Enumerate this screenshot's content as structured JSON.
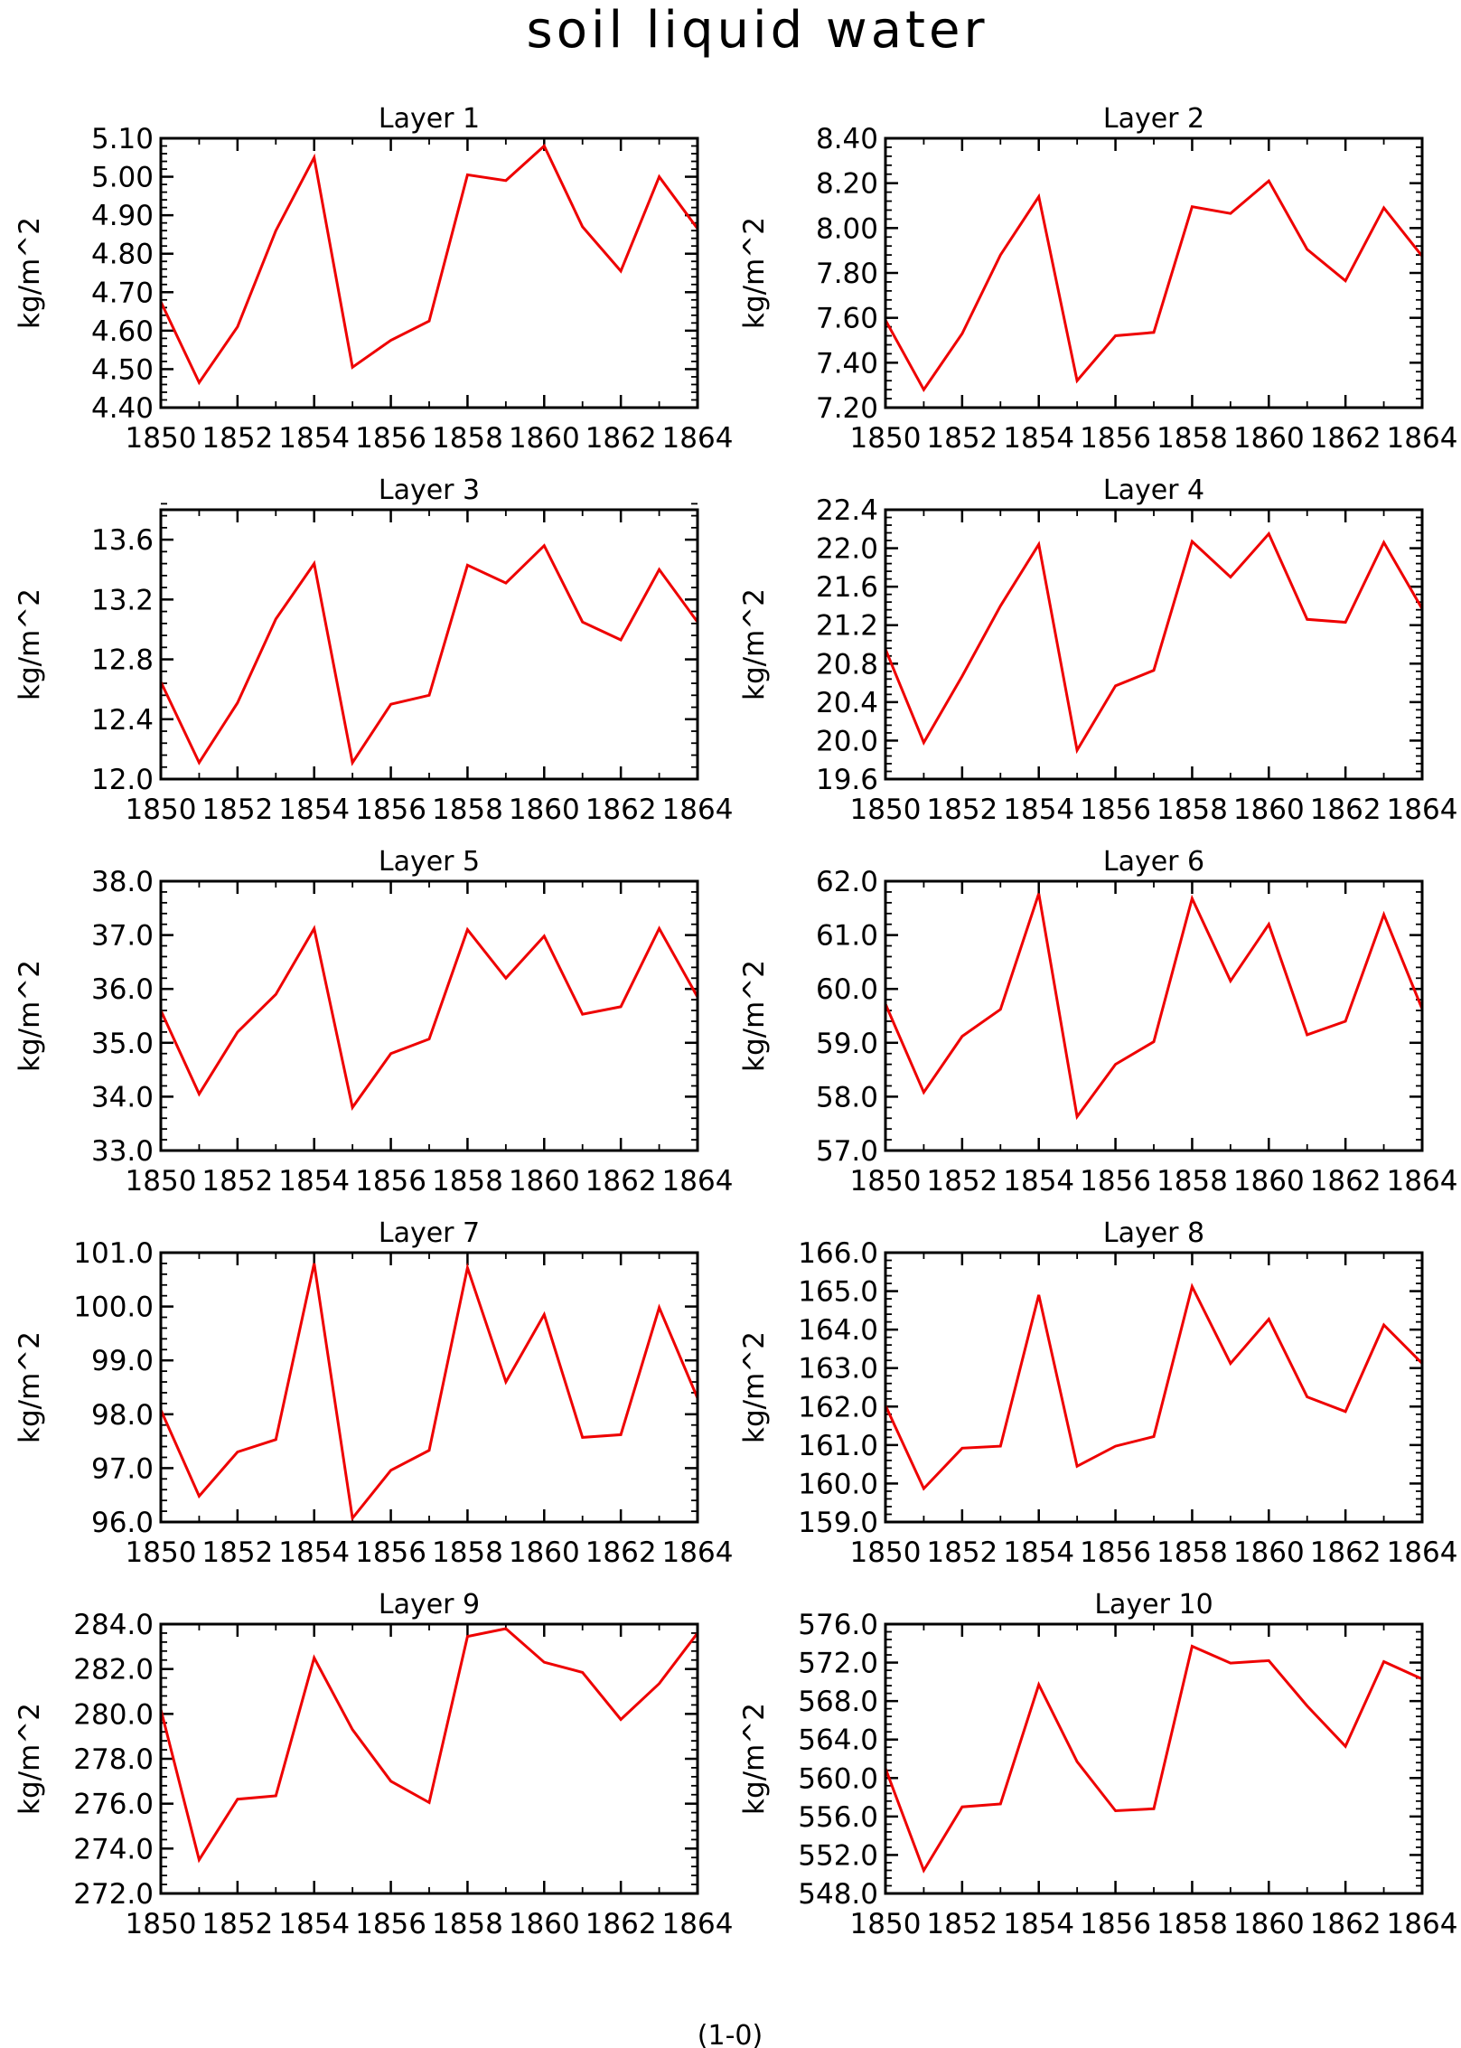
{
  "figure": {
    "title": "soil liquid water",
    "footer": "(1-0)",
    "line_color": "#ee0000"
  },
  "chart_data": [
    {
      "type": "line",
      "title": "Layer 1",
      "ylabel": "kg/m^2",
      "ylim": [
        4.4,
        5.1
      ],
      "yticks": [
        "4.40",
        "4.50",
        "4.60",
        "4.70",
        "4.80",
        "4.90",
        "5.00",
        "5.10"
      ],
      "yminor": 0.02,
      "x": [
        1850,
        1851,
        1852,
        1853,
        1854,
        1855,
        1856,
        1857,
        1858,
        1859,
        1860,
        1861,
        1862,
        1863,
        1864
      ],
      "xlim": [
        1850,
        1864
      ],
      "xticks": [
        "1850",
        "1852",
        "1854",
        "1856",
        "1858",
        "1860",
        "1862",
        "1864"
      ],
      "values": [
        4.675,
        4.465,
        4.61,
        4.86,
        5.05,
        4.505,
        4.575,
        4.625,
        5.005,
        4.99,
        5.08,
        4.87,
        4.755,
        5.0,
        4.865
      ]
    },
    {
      "type": "line",
      "title": "Layer 2",
      "ylabel": "kg/m^2",
      "ylim": [
        7.2,
        8.4
      ],
      "yticks": [
        "7.20",
        "7.40",
        "7.60",
        "7.80",
        "8.00",
        "8.20",
        "8.40"
      ],
      "yminor": 0.04,
      "x": [
        1850,
        1851,
        1852,
        1853,
        1854,
        1855,
        1856,
        1857,
        1858,
        1859,
        1860,
        1861,
        1862,
        1863,
        1864
      ],
      "xlim": [
        1850,
        1864
      ],
      "xticks": [
        "1850",
        "1852",
        "1854",
        "1856",
        "1858",
        "1860",
        "1862",
        "1864"
      ],
      "values": [
        7.59,
        7.28,
        7.53,
        7.88,
        8.14,
        7.32,
        7.52,
        7.535,
        8.095,
        8.065,
        8.21,
        7.905,
        7.765,
        8.09,
        7.875
      ]
    },
    {
      "type": "line",
      "title": "Layer 3",
      "ylabel": "kg/m^2",
      "ylim": [
        12.0,
        13.8
      ],
      "yticks": [
        "12.0",
        "12.4",
        "12.8",
        "13.2",
        "13.6"
      ],
      "yminor": 0.08,
      "x": [
        1850,
        1851,
        1852,
        1853,
        1854,
        1855,
        1856,
        1857,
        1858,
        1859,
        1860,
        1861,
        1862,
        1863,
        1864
      ],
      "xlim": [
        1850,
        1864
      ],
      "xticks": [
        "1850",
        "1852",
        "1854",
        "1856",
        "1858",
        "1860",
        "1862",
        "1864"
      ],
      "values": [
        12.65,
        12.11,
        12.51,
        13.07,
        13.44,
        12.11,
        12.5,
        12.56,
        13.43,
        13.31,
        13.56,
        13.05,
        12.93,
        13.4,
        13.05
      ]
    },
    {
      "type": "line",
      "title": "Layer 4",
      "ylabel": "kg/m^2",
      "ylim": [
        19.6,
        22.4
      ],
      "yticks": [
        "19.6",
        "20.0",
        "20.4",
        "20.8",
        "21.2",
        "21.6",
        "22.0",
        "22.4"
      ],
      "yminor": 0.08,
      "x": [
        1850,
        1851,
        1852,
        1853,
        1854,
        1855,
        1856,
        1857,
        1858,
        1859,
        1860,
        1861,
        1862,
        1863,
        1864
      ],
      "xlim": [
        1850,
        1864
      ],
      "xticks": [
        "1850",
        "1852",
        "1854",
        "1856",
        "1858",
        "1860",
        "1862",
        "1864"
      ],
      "values": [
        20.95,
        19.98,
        20.67,
        21.4,
        22.04,
        19.9,
        20.57,
        20.73,
        22.07,
        21.7,
        22.15,
        21.26,
        21.23,
        22.06,
        21.37
      ]
    },
    {
      "type": "line",
      "title": "Layer 5",
      "ylabel": "kg/m^2",
      "ylim": [
        33.0,
        38.0
      ],
      "yticks": [
        "33.0",
        "34.0",
        "35.0",
        "36.0",
        "37.0",
        "38.0"
      ],
      "yminor": 0.2,
      "x": [
        1850,
        1851,
        1852,
        1853,
        1854,
        1855,
        1856,
        1857,
        1858,
        1859,
        1860,
        1861,
        1862,
        1863,
        1864
      ],
      "xlim": [
        1850,
        1864
      ],
      "xticks": [
        "1850",
        "1852",
        "1854",
        "1856",
        "1858",
        "1860",
        "1862",
        "1864"
      ],
      "values": [
        35.6,
        34.05,
        35.2,
        35.9,
        37.12,
        33.8,
        34.8,
        35.07,
        37.1,
        36.2,
        36.98,
        35.53,
        35.67,
        37.12,
        35.85
      ]
    },
    {
      "type": "line",
      "title": "Layer 6",
      "ylabel": "kg/m^2",
      "ylim": [
        57.0,
        62.0
      ],
      "yticks": [
        "57.0",
        "58.0",
        "59.0",
        "60.0",
        "61.0",
        "62.0"
      ],
      "yminor": 0.2,
      "x": [
        1850,
        1851,
        1852,
        1853,
        1854,
        1855,
        1856,
        1857,
        1858,
        1859,
        1860,
        1861,
        1862,
        1863,
        1864
      ],
      "xlim": [
        1850,
        1864
      ],
      "xticks": [
        "1850",
        "1852",
        "1854",
        "1856",
        "1858",
        "1860",
        "1862",
        "1864"
      ],
      "values": [
        59.72,
        58.08,
        59.12,
        59.62,
        61.77,
        57.63,
        58.6,
        59.02,
        61.68,
        60.15,
        61.2,
        59.15,
        59.4,
        61.38,
        59.63
      ]
    },
    {
      "type": "line",
      "title": "Layer 7",
      "ylabel": "kg/m^2",
      "ylim": [
        96.0,
        101.0
      ],
      "yticks": [
        "96.0",
        "97.0",
        "98.0",
        "99.0",
        "100.0",
        "101.0"
      ],
      "yminor": 0.2,
      "x": [
        1850,
        1851,
        1852,
        1853,
        1854,
        1855,
        1856,
        1857,
        1858,
        1859,
        1860,
        1861,
        1862,
        1863,
        1864
      ],
      "xlim": [
        1850,
        1864
      ],
      "xticks": [
        "1850",
        "1852",
        "1854",
        "1856",
        "1858",
        "1860",
        "1862",
        "1864"
      ],
      "values": [
        98.08,
        96.48,
        97.3,
        97.53,
        100.8,
        96.07,
        96.96,
        97.33,
        100.72,
        98.6,
        99.85,
        97.57,
        97.62,
        99.98,
        98.3
      ]
    },
    {
      "type": "line",
      "title": "Layer 8",
      "ylabel": "kg/m^2",
      "ylim": [
        159.0,
        166.0
      ],
      "yticks": [
        "159.0",
        "160.0",
        "161.0",
        "162.0",
        "163.0",
        "164.0",
        "165.0",
        "166.0"
      ],
      "yminor": 0.2,
      "x": [
        1850,
        1851,
        1852,
        1853,
        1854,
        1855,
        1856,
        1857,
        1858,
        1859,
        1860,
        1861,
        1862,
        1863,
        1864
      ],
      "xlim": [
        1850,
        1864
      ],
      "xticks": [
        "1850",
        "1852",
        "1854",
        "1856",
        "1858",
        "1860",
        "1862",
        "1864"
      ],
      "values": [
        162.03,
        159.87,
        160.92,
        160.97,
        164.9,
        160.45,
        160.97,
        161.22,
        165.12,
        163.12,
        164.27,
        162.25,
        161.87,
        164.12,
        163.12
      ]
    },
    {
      "type": "line",
      "title": "Layer 9",
      "ylabel": "kg/m^2",
      "ylim": [
        272.0,
        284.0
      ],
      "yticks": [
        "272.0",
        "274.0",
        "276.0",
        "278.0",
        "280.0",
        "282.0",
        "284.0"
      ],
      "yminor": 0.4,
      "x": [
        1850,
        1851,
        1852,
        1853,
        1854,
        1855,
        1856,
        1857,
        1858,
        1859,
        1860,
        1861,
        1862,
        1863,
        1864
      ],
      "xlim": [
        1850,
        1864
      ],
      "xticks": [
        "1850",
        "1852",
        "1854",
        "1856",
        "1858",
        "1860",
        "1862",
        "1864"
      ],
      "values": [
        280.2,
        273.5,
        276.2,
        276.35,
        282.5,
        279.3,
        277.0,
        276.05,
        283.45,
        283.8,
        282.3,
        281.85,
        279.75,
        281.35,
        283.6
      ]
    },
    {
      "type": "line",
      "title": "Layer 10",
      "ylabel": "kg/m^2",
      "ylim": [
        548.0,
        576.0
      ],
      "yticks": [
        "548.0",
        "552.0",
        "556.0",
        "560.0",
        "564.0",
        "568.0",
        "572.0",
        "576.0"
      ],
      "yminor": 0.8,
      "x": [
        1850,
        1851,
        1852,
        1853,
        1854,
        1855,
        1856,
        1857,
        1858,
        1859,
        1860,
        1861,
        1862,
        1863,
        1864
      ],
      "xlim": [
        1850,
        1864
      ],
      "xticks": [
        "1850",
        "1852",
        "1854",
        "1856",
        "1858",
        "1860",
        "1862",
        "1864"
      ],
      "values": [
        561.0,
        550.4,
        557.0,
        557.3,
        569.7,
        561.7,
        556.6,
        556.8,
        573.7,
        571.95,
        572.2,
        567.5,
        563.3,
        572.1,
        570.3
      ]
    }
  ]
}
